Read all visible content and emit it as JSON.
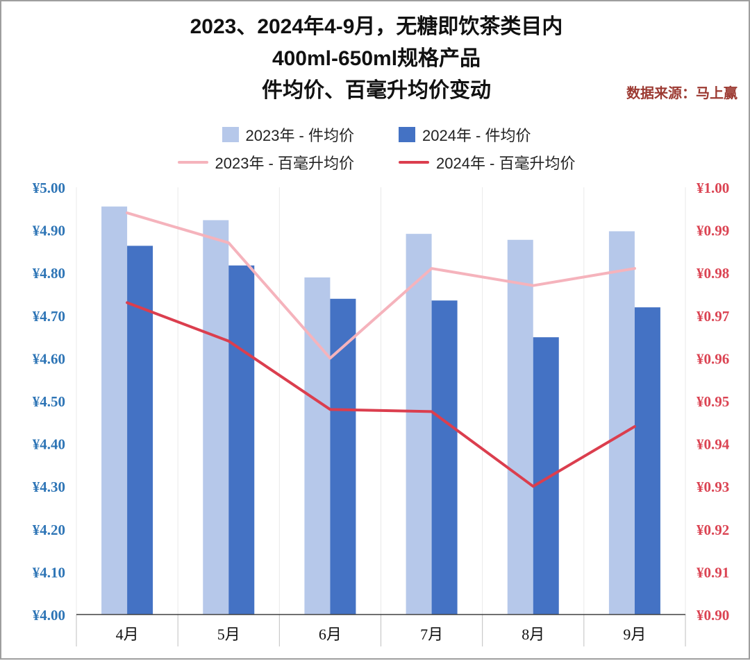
{
  "title": {
    "line1": "2023、2024年4-9月，无糖即饮茶类目内",
    "line2": "400ml-650ml规格产品",
    "line3": "件均价、百毫升均价变动"
  },
  "source": "数据来源：马上赢",
  "colors": {
    "bar_2023": "#b6c8ea",
    "bar_2024": "#4472c4",
    "line_2023": "#f5b3bc",
    "line_2024": "#db3e4e",
    "left_axis_text": "#2e75b6",
    "right_axis_text": "#db4453",
    "axis_line": "#404040",
    "gridline": "#e9e9e9",
    "tick_line": "#bfbfbf"
  },
  "legend": [
    {
      "label": "2023年 - 件均价",
      "type": "bar",
      "color_key": "bar_2023"
    },
    {
      "label": "2024年 - 件均价",
      "type": "bar",
      "color_key": "bar_2024"
    },
    {
      "label": "2023年 - 百毫升均价",
      "type": "line",
      "color_key": "line_2023"
    },
    {
      "label": "2024年 - 百毫升均价",
      "type": "line",
      "color_key": "line_2024"
    }
  ],
  "chart_data": {
    "type": "combo-bar-line",
    "categories": [
      "4月",
      "5月",
      "6月",
      "7月",
      "8月",
      "9月"
    ],
    "bar_series": [
      {
        "name": "2023年 - 件均价",
        "axis": "left",
        "color_key": "bar_2023",
        "values": [
          4.955,
          4.923,
          4.789,
          4.891,
          4.877,
          4.897
        ]
      },
      {
        "name": "2024年 - 件均价",
        "axis": "left",
        "color_key": "bar_2024",
        "values": [
          4.863,
          4.817,
          4.739,
          4.735,
          4.649,
          4.719
        ]
      }
    ],
    "line_series": [
      {
        "name": "2023年 - 百毫升均价",
        "axis": "right",
        "color_key": "line_2023",
        "values": [
          0.994,
          0.987,
          0.96,
          0.981,
          0.977,
          0.981
        ]
      },
      {
        "name": "2024年 - 百毫升均价",
        "axis": "right",
        "color_key": "line_2024",
        "values": [
          0.973,
          0.964,
          0.948,
          0.9475,
          0.93,
          0.944
        ]
      }
    ],
    "left_axis": {
      "min": 4.0,
      "max": 5.0,
      "step": 0.1,
      "prefix": "¥",
      "decimals": 2
    },
    "right_axis": {
      "min": 0.9,
      "max": 1.0,
      "step": 0.01,
      "prefix": "¥",
      "decimals": 2
    },
    "grid": "vertical-category-lines",
    "legend_position": "top"
  }
}
